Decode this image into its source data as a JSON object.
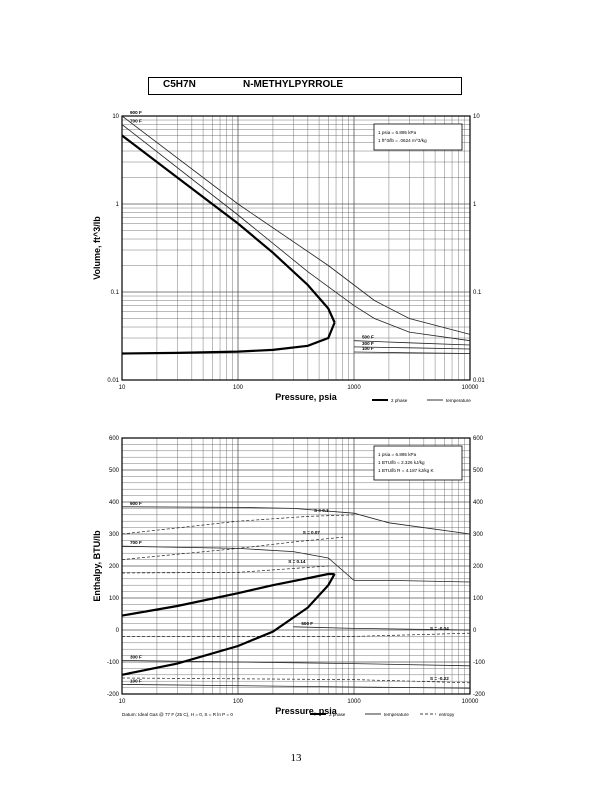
{
  "header": {
    "formula": "C5H7N",
    "name": "N-METHYLPYRROLE"
  },
  "page_number": "13",
  "chart_data": [
    {
      "type": "line",
      "xlabel": "Pressure,  psia",
      "ylabel": "Volume,  ft^3/lb",
      "x_scale": "log",
      "y_scale": "log",
      "xlim": [
        10,
        10000
      ],
      "ylim": [
        0.01,
        10
      ],
      "x_ticks": [
        "10",
        "100",
        "1000",
        "10000"
      ],
      "y_ticks_left": [
        "10",
        "1",
        "0.1",
        "0.01"
      ],
      "y_ticks_right": [
        "10",
        "1",
        "0.1",
        "0.01"
      ],
      "grid": true,
      "legend_position": "top-right",
      "notes": [
        "1 psia  =  6.895 kPa",
        "1 ft^3/lb  =  .0624 m^3/kg"
      ],
      "legend": [
        {
          "label": "2 phase",
          "style": "thick solid"
        },
        {
          "label": "temperature",
          "style": "thin solid"
        }
      ],
      "two_phase": {
        "liquid": {
          "x": [
            10,
            30,
            100,
            200,
            400,
            600,
            680
          ],
          "y": [
            0.02,
            0.0203,
            0.021,
            0.022,
            0.0245,
            0.03,
            0.045
          ]
        },
        "vapor": {
          "x": [
            10,
            30,
            100,
            200,
            400,
            600,
            680
          ],
          "y": [
            6.0,
            2.0,
            0.6,
            0.28,
            0.12,
            0.065,
            0.045
          ]
        }
      },
      "isotherms": [
        {
          "label": "100 F",
          "x": [
            1000,
            3000,
            10000
          ],
          "y": [
            0.0208,
            0.0204,
            0.02
          ]
        },
        {
          "label": "300 F",
          "x": [
            1000,
            3000,
            10000
          ],
          "y": [
            0.0238,
            0.0232,
            0.0225
          ]
        },
        {
          "label": "500 F",
          "x": [
            1000,
            3000,
            10000
          ],
          "y": [
            0.028,
            0.0265,
            0.025
          ]
        },
        {
          "label": "700 F",
          "x": [
            10,
            100,
            400,
            1000,
            1500,
            3000,
            10000
          ],
          "y": [
            8.0,
            0.75,
            0.17,
            0.07,
            0.05,
            0.035,
            0.028
          ]
        },
        {
          "label": "900 F",
          "x": [
            10,
            100,
            600,
            1000,
            1500,
            3000,
            10000
          ],
          "y": [
            10.0,
            1.0,
            0.2,
            0.12,
            0.08,
            0.05,
            0.033
          ]
        }
      ]
    },
    {
      "type": "line",
      "xlabel": "Pressure,  psia",
      "ylabel": "Enthalpy,  BTU/lb",
      "x_scale": "log",
      "xlim": [
        10,
        10000
      ],
      "ylim": [
        -200,
        600
      ],
      "x_ticks": [
        "10",
        "100",
        "1000",
        "10000"
      ],
      "y_ticks_left": [
        "600",
        "500",
        "400",
        "300",
        "200",
        "100",
        "0",
        "-100",
        "-200"
      ],
      "y_ticks_right": [
        "600",
        "500",
        "400",
        "300",
        "200",
        "100",
        "0",
        "-100",
        "-200"
      ],
      "grid": true,
      "legend_position": "top-right",
      "notes": [
        "1 psia  =  6.895 kPa",
        "1 BTU/lb  =  2.326 kJ/kg",
        "1 BTU/lb R  =  4.187 kJ/kg K"
      ],
      "datum": "Datum: Ideal Gas @ 77 F (25 C),  H = 0,  S = R ln P = 0",
      "legend": [
        {
          "label": "2 phase",
          "style": "thick solid"
        },
        {
          "label": "temperature",
          "style": "thin solid"
        },
        {
          "label": "entropy",
          "style": "dashed"
        }
      ],
      "two_phase": {
        "liquid": {
          "x": [
            10,
            30,
            100,
            200,
            400,
            600,
            680
          ],
          "y": [
            -140,
            -105,
            -50,
            -5,
            70,
            140,
            175
          ]
        },
        "vapor": {
          "x": [
            10,
            30,
            100,
            200,
            400,
            600,
            680
          ],
          "y": [
            45,
            75,
            115,
            140,
            162,
            175,
            175
          ]
        }
      },
      "isotherms": [
        {
          "label": "100 F",
          "x": [
            10,
            1000,
            10000
          ],
          "y": [
            -170,
            -178,
            -182
          ]
        },
        {
          "label": "300 F",
          "x": [
            10,
            1000,
            10000
          ],
          "y": [
            -95,
            -105,
            -112
          ]
        },
        {
          "label": "500 F",
          "x": [
            300,
            1000,
            10000
          ],
          "y": [
            10,
            5,
            0
          ]
        },
        {
          "label": "700 F",
          "x": [
            10,
            100,
            300,
            600,
            1000,
            2000,
            10000
          ],
          "y": [
            262,
            255,
            245,
            225,
            155,
            155,
            150
          ]
        },
        {
          "label": "900 F",
          "x": [
            10,
            100,
            300,
            1000,
            2000,
            10000
          ],
          "y": [
            385,
            383,
            380,
            365,
            335,
            300
          ]
        }
      ],
      "entropy_lines": [
        {
          "label": "S = 0.3",
          "x": [
            10,
            100,
            400,
            1000
          ],
          "y": [
            300,
            340,
            355,
            360
          ]
        },
        {
          "label": "S = 0.07",
          "x": [
            10,
            100,
            300,
            800
          ],
          "y": [
            220,
            255,
            275,
            290
          ]
        },
        {
          "label": "S = 0.14",
          "x": [
            10,
            100,
            600
          ],
          "y": [
            178,
            180,
            200
          ]
        },
        {
          "label": "S = -0.04",
          "x": [
            10,
            1000,
            10000
          ],
          "y": [
            -20,
            -20,
            -10
          ]
        },
        {
          "label": "S = -0.22",
          "x": [
            10,
            1000,
            10000
          ],
          "y": [
            -150,
            -155,
            -165
          ]
        }
      ]
    }
  ]
}
